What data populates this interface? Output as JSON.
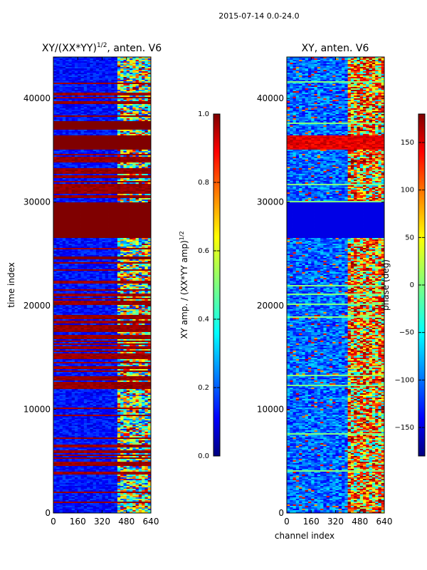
{
  "figure_title": "2015-07-14 0.0-24.0",
  "chart_data": [
    {
      "type": "heatmap",
      "title": "XY/(XX*YY)^{1/2}, anten. V6",
      "title_main": "XY/(XX*YY)",
      "title_exp": "1/2",
      "title_tail": ", anten. V6",
      "xlabel": "",
      "ylabel": "time index",
      "xlim": [
        0,
        640
      ],
      "ylim": [
        0,
        44000
      ],
      "xticks": [
        0,
        160,
        320,
        480,
        640
      ],
      "yticks": [
        0,
        10000,
        20000,
        30000,
        40000
      ],
      "colorbar": {
        "label_main": "XY amp. / (XX*YY amp)",
        "label_exp": "1/2",
        "range": [
          0.0,
          1.0
        ],
        "ticks": [
          0.0,
          0.2,
          0.4,
          0.6,
          0.8,
          1.0
        ],
        "tick_labels": [
          "0.0",
          "0.2",
          "0.4",
          "0.6",
          "0.8",
          "1.0"
        ]
      },
      "colormap": "jet",
      "saturated_time_bands": [
        [
          24500,
          24800
        ],
        [
          26500,
          28500
        ],
        [
          28500,
          30000
        ],
        [
          35000,
          36500
        ],
        [
          37000,
          37800
        ]
      ],
      "dense_stripe_regions": [
        [
          38000,
          42500
        ],
        [
          30200,
          34800
        ],
        [
          4500,
          8500
        ],
        [
          12000,
          22500
        ]
      ],
      "active_channel_band": [
        420,
        630
      ]
    },
    {
      "type": "heatmap",
      "title": "XY, anten. V6",
      "xlabel": "channel index",
      "ylabel": "",
      "xlim": [
        0,
        640
      ],
      "ylim": [
        0,
        44000
      ],
      "xticks": [
        0,
        160,
        320,
        480,
        640
      ],
      "yticks": [
        0,
        10000,
        20000,
        30000,
        40000
      ],
      "colorbar": {
        "label": "phase (deg)",
        "range": [
          -180,
          180
        ],
        "ticks": [
          -150,
          -100,
          -50,
          0,
          50,
          100,
          150
        ],
        "tick_labels": [
          "−150",
          "−100",
          "−50",
          "0",
          "50",
          "100",
          "150"
        ]
      },
      "colormap": "jet",
      "constant_phase_bands": [
        [
          26500,
          30000
        ]
      ],
      "red_bands": [
        [
          35000,
          36500
        ]
      ],
      "active_channel_band": [
        400,
        640
      ]
    }
  ],
  "colors": {
    "jet_stops": [
      "#00007f",
      "#0000ff",
      "#007fff",
      "#00ffff",
      "#7fff7f",
      "#ffff00",
      "#ff7f00",
      "#ff0000",
      "#7f0000"
    ],
    "axis": "#000000",
    "background": "#ffffff"
  }
}
